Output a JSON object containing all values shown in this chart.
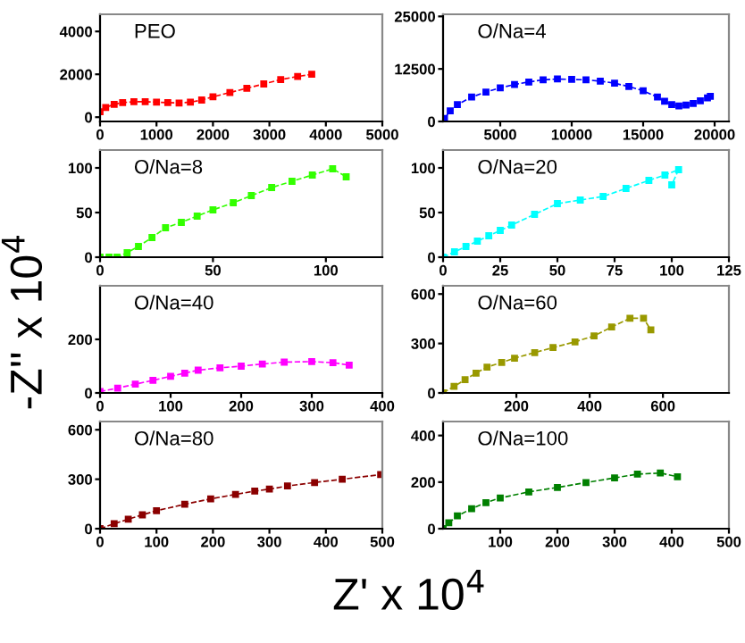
{
  "chart_data": [
    {
      "type": "line",
      "title": "PEO",
      "ylabel": "-Z'' x 10$^{4}$",
      "marker": "square",
      "line_style": "dashed",
      "xlim": [
        0,
        5000
      ],
      "ylim": [
        -200,
        4800
      ],
      "xticks": [
        0,
        1000,
        2000,
        3000,
        4000,
        5000
      ],
      "yticks": [
        0,
        2000,
        4000
      ],
      "x": [
        0,
        100,
        250,
        400,
        600,
        800,
        1000,
        1200,
        1400,
        1600,
        1800,
        2000,
        2300,
        2600,
        2900,
        3200,
        3500,
        3750
      ],
      "series": [
        {
          "color": "#ff0000",
          "values": [
            250,
            450,
            600,
            680,
            720,
            720,
            700,
            680,
            660,
            700,
            800,
            950,
            1150,
            1350,
            1550,
            1750,
            1900,
            2000
          ]
        }
      ]
    },
    {
      "type": "line",
      "title": "O/Na=4",
      "marker": "square",
      "line_style": "dashed",
      "xlim": [
        1000,
        21000
      ],
      "ylim": [
        0,
        25500
      ],
      "xticks": [
        5000,
        10000,
        15000,
        20000
      ],
      "yticks": [
        0,
        12500,
        25000
      ],
      "x": [
        1100,
        1500,
        2000,
        3000,
        4000,
        5000,
        6000,
        7000,
        8000,
        9000,
        10000,
        11000,
        12000,
        13000,
        14000,
        15000,
        16000,
        16500,
        17000,
        17500,
        18000,
        18500,
        19000,
        19500,
        19700
      ],
      "series": [
        {
          "color": "#0000ff",
          "values": [
            700,
            2500,
            4000,
            5800,
            7000,
            8000,
            8800,
            9400,
            9900,
            10100,
            10000,
            9900,
            9600,
            9100,
            8300,
            7300,
            5800,
            4800,
            4000,
            3700,
            3900,
            4300,
            4900,
            5600,
            6000
          ]
        }
      ]
    },
    {
      "type": "line",
      "title": "O/Na=8",
      "marker": "square",
      "line_style": "dashed",
      "xlim": [
        0,
        125
      ],
      "ylim": [
        0,
        120
      ],
      "xticks": [
        0,
        50,
        100
      ],
      "yticks": [
        0,
        50,
        100
      ],
      "x": [
        0,
        4,
        7.5,
        12,
        17,
        23,
        29,
        36,
        43,
        50,
        59,
        67,
        76,
        85,
        94,
        103,
        109
      ],
      "series": [
        {
          "color": "#33ff00",
          "values": [
            0,
            0,
            0,
            5,
            12,
            22,
            33,
            39,
            46,
            53,
            61,
            69,
            78,
            85,
            92,
            99,
            90
          ]
        }
      ]
    },
    {
      "type": "line",
      "title": "O/Na=20",
      "marker": "square",
      "line_style": "dashed",
      "xlim": [
        0,
        125
      ],
      "ylim": [
        0,
        120
      ],
      "xticks": [
        0,
        25,
        50,
        75,
        100,
        125
      ],
      "yticks": [
        0,
        50,
        100
      ],
      "x": [
        0,
        5,
        10,
        15,
        20,
        25,
        30,
        40,
        50,
        60,
        70,
        80,
        90,
        97,
        103,
        100
      ],
      "series": [
        {
          "color": "#00ffff",
          "values": [
            0,
            6,
            12,
            18,
            24,
            30,
            36,
            48,
            60,
            64,
            68,
            77,
            86,
            92,
            98,
            81
          ]
        }
      ]
    },
    {
      "type": "line",
      "title": "O/Na=40",
      "marker": "square",
      "line_style": "dashed",
      "xlim": [
        0,
        400
      ],
      "ylim": [
        0,
        400
      ],
      "xticks": [
        0,
        100,
        200,
        300,
        400
      ],
      "yticks": [
        0,
        200
      ],
      "x": [
        0,
        25,
        50,
        75,
        100,
        120,
        139,
        170,
        200,
        230,
        261,
        300,
        330,
        353
      ],
      "series": [
        {
          "color": "#ff00ff",
          "values": [
            5,
            18,
            33,
            47,
            62,
            74,
            85,
            94,
            100,
            108,
            115,
            117,
            113,
            104
          ]
        }
      ]
    },
    {
      "type": "line",
      "title": "O/Na=60",
      "marker": "square",
      "line_style": "dashed",
      "xlim": [
        0,
        780
      ],
      "ylim": [
        0,
        650
      ],
      "xticks": [
        200,
        400,
        600
      ],
      "yticks": [
        0,
        300,
        600
      ],
      "x": [
        0,
        30,
        60,
        90,
        120,
        160,
        195,
        250,
        300,
        360,
        412,
        460,
        510,
        547,
        567
      ],
      "series": [
        {
          "color": "#999900",
          "values": [
            0,
            40,
            80,
            120,
            157,
            185,
            211,
            245,
            275,
            310,
            346,
            400,
            453,
            453,
            382
          ]
        }
      ]
    },
    {
      "type": "line",
      "title": "O/Na=80",
      "marker": "square",
      "line_style": "dashed",
      "xlim": [
        0,
        500
      ],
      "ylim": [
        0,
        650
      ],
      "xticks": [
        0,
        100,
        200,
        300,
        400,
        500
      ],
      "yticks": [
        0,
        300,
        600
      ],
      "x": [
        0,
        25,
        50,
        75,
        100,
        150,
        196,
        240,
        274,
        300,
        332,
        380,
        429,
        497
      ],
      "series": [
        {
          "color": "#8b0000",
          "values": [
            0,
            30,
            58,
            84,
            109,
            148,
            181,
            208,
            228,
            240,
            259,
            280,
            300,
            328
          ]
        }
      ]
    },
    {
      "type": "line",
      "title": "O/Na=100",
      "xlabel": "Z' x 10$^{4}$",
      "marker": "square",
      "line_style": "dashed",
      "xlim": [
        0,
        500
      ],
      "ylim": [
        0,
        460
      ],
      "xticks": [
        100,
        200,
        300,
        400,
        500
      ],
      "yticks": [
        0,
        200,
        400
      ],
      "x": [
        0,
        10,
        25,
        50,
        75,
        100,
        150,
        200,
        250,
        300,
        340,
        380,
        410
      ],
      "series": [
        {
          "color": "#008000",
          "values": [
            0,
            25,
            55,
            86,
            112,
            132,
            158,
            177,
            198,
            218,
            234,
            239,
            223
          ]
        }
      ]
    }
  ]
}
